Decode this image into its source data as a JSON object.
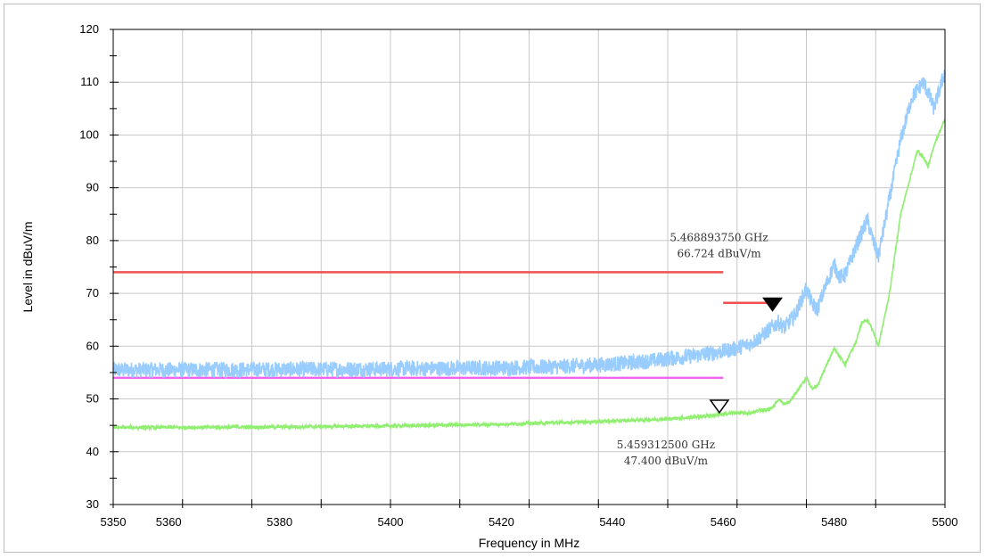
{
  "chart_data": {
    "type": "line",
    "xlabel": "Frequency in MHz",
    "ylabel": "Level in dBuV/m",
    "xlim": [
      5350,
      5500
    ],
    "ylim": [
      30,
      120
    ],
    "x_ticks": [
      5350,
      5360,
      5380,
      5400,
      5420,
      5440,
      5460,
      5480,
      5500
    ],
    "x_grid": [
      5350,
      5362.5,
      5375,
      5387.5,
      5400,
      5412.5,
      5425,
      5437.5,
      5450,
      5462.5,
      5475,
      5487.5,
      5500
    ],
    "y_ticks": [
      30,
      40,
      50,
      60,
      70,
      80,
      90,
      100,
      110,
      120
    ],
    "grid": true,
    "series": [
      {
        "color": "#99ccff",
        "noise": 1.5,
        "x": [
          5350,
          5360,
          5380,
          5400,
          5420,
          5430,
          5440,
          5445,
          5450,
          5455,
          5458,
          5460,
          5462,
          5465,
          5467,
          5469,
          5470,
          5471,
          5473,
          5475,
          5476,
          5477,
          5478,
          5480,
          5481,
          5482,
          5484,
          5486,
          5487,
          5488,
          5490,
          5492,
          5494,
          5496,
          5497,
          5498,
          5500
        ],
        "y": [
          55.5,
          55.5,
          55.6,
          55.7,
          55.9,
          56.1,
          56.6,
          57.0,
          57.6,
          58.2,
          58.7,
          59.0,
          59.5,
          60.5,
          62.0,
          63.8,
          64.5,
          63.5,
          66.0,
          71.0,
          68.0,
          67.0,
          70.0,
          75.5,
          73.0,
          73.5,
          79.0,
          84.0,
          80.0,
          77.0,
          88.0,
          99.0,
          107.0,
          110.0,
          108.0,
          105.0,
          112.0
        ]
      },
      {
        "color": "#90ee70",
        "noise": 0.3,
        "x": [
          5350,
          5360,
          5380,
          5400,
          5420,
          5440,
          5450,
          5455,
          5459.3,
          5462,
          5465,
          5467,
          5468,
          5469,
          5470,
          5471,
          5472,
          5474,
          5475,
          5476,
          5477,
          5478,
          5480,
          5481,
          5482,
          5484,
          5485,
          5486,
          5487,
          5488,
          5490,
          5492,
          5494,
          5495,
          5496,
          5497,
          5498,
          5500
        ],
        "y": [
          44.6,
          44.6,
          44.7,
          44.9,
          45.2,
          45.8,
          46.2,
          46.6,
          47.0,
          47.4,
          47.3,
          48.0,
          47.9,
          48.5,
          50.0,
          49.0,
          49.5,
          52.5,
          54.0,
          52.0,
          52.5,
          55.0,
          59.5,
          58.0,
          56.5,
          61.0,
          64.5,
          65.0,
          63.0,
          60.0,
          70.0,
          85.0,
          93.0,
          97.0,
          96.0,
          94.0,
          98.0,
          103.0
        ]
      }
    ],
    "limit_lines": [
      {
        "color": "#f05050",
        "x": [
          5350,
          5460
        ],
        "y": 74
      },
      {
        "color": "#f05050",
        "x": [
          5460,
          5468.9
        ],
        "y": 68.2
      },
      {
        "color": "#ee66ee",
        "x": [
          5350,
          5460
        ],
        "y": 54
      }
    ],
    "markers": [
      {
        "x": 5468.89375,
        "y": 66.724,
        "filled": true,
        "label_freq": "5.468893750 GHz",
        "label_level": "66.724 dBuV/m",
        "label_pos": "above"
      },
      {
        "x": 5459.3125,
        "y": 47.4,
        "filled": false,
        "label_freq": "5.459312500 GHz",
        "label_level": "47.400 dBuV/m",
        "label_pos": "below"
      }
    ]
  }
}
